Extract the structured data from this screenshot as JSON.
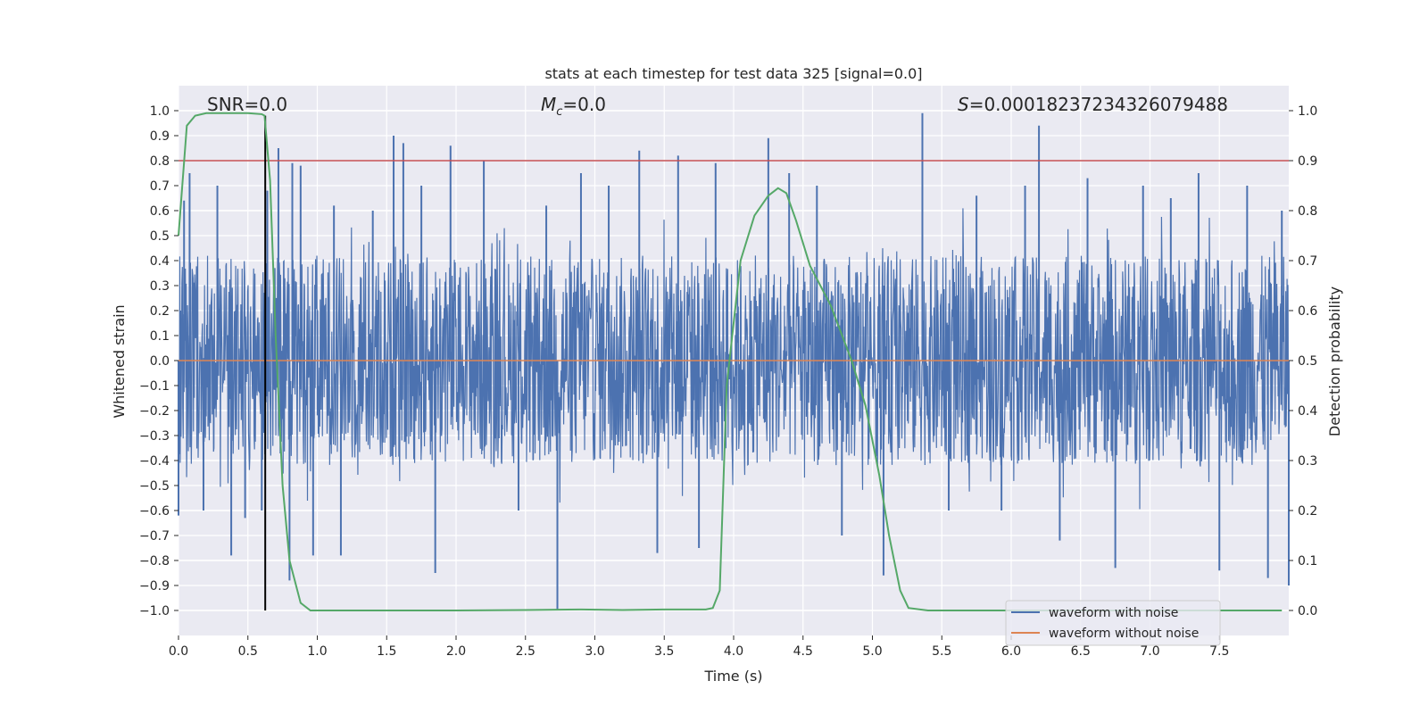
{
  "chart_data": {
    "type": "line",
    "title": "stats at each timestep for test data 325 [signal=0.0]",
    "xlabel": "Time (s)",
    "ylabel_left": "Whitened strain",
    "ylabel_right": "Detection probability",
    "xlim": [
      0.0,
      8.0
    ],
    "ylim_left": [
      -1.1,
      1.1
    ],
    "ylim_right": [
      -0.05,
      1.05
    ],
    "x_ticks": [
      "0.0",
      "0.5",
      "1.0",
      "1.5",
      "2.0",
      "2.5",
      "3.0",
      "3.5",
      "4.0",
      "4.5",
      "5.0",
      "5.5",
      "6.0",
      "6.5",
      "7.0",
      "7.5"
    ],
    "y_ticks_left": [
      "1.0",
      "0.9",
      "0.8",
      "0.7",
      "0.6",
      "0.5",
      "0.4",
      "0.3",
      "0.2",
      "0.1",
      "0.0",
      "−0.1",
      "−0.2",
      "−0.3",
      "−0.4",
      "−0.5",
      "−0.6",
      "−0.7",
      "−0.8",
      "−0.9",
      "−1.0"
    ],
    "y_ticks_right": [
      "1.0",
      "0.9",
      "0.8",
      "0.7",
      "0.6",
      "0.5",
      "0.4",
      "0.3",
      "0.2",
      "0.1",
      "0.0"
    ],
    "annotations": {
      "snr": "SNR=0.0",
      "mc_symbol": "M",
      "mc_sub": "c",
      "mc_value": "=0.0",
      "s_symbol": "S",
      "s_value": "=0.00018237234326079488"
    },
    "threshold_line": {
      "axis": "right",
      "y": 0.9,
      "color": "#c44e52"
    },
    "marker_line": {
      "x": 0.625,
      "y_from": -1.0,
      "y_to": 0.98,
      "color": "#000000"
    },
    "noise_envelope": {
      "typical_abs": 0.42,
      "spike_abs_max": 0.98,
      "color": "#4c72b0"
    },
    "series": [
      {
        "name": "waveform with noise",
        "color": "#4c72b0",
        "axis": "left",
        "spikes": [
          {
            "x": 0.0,
            "y": -0.62
          },
          {
            "x": 0.04,
            "y": 0.64
          },
          {
            "x": 0.08,
            "y": 0.75
          },
          {
            "x": 0.18,
            "y": -0.6
          },
          {
            "x": 0.28,
            "y": 0.7
          },
          {
            "x": 0.38,
            "y": -0.78
          },
          {
            "x": 0.48,
            "y": -0.63
          },
          {
            "x": 0.6,
            "y": -0.6
          },
          {
            "x": 0.64,
            "y": 0.68
          },
          {
            "x": 0.72,
            "y": 0.85
          },
          {
            "x": 0.8,
            "y": -0.88
          },
          {
            "x": 0.82,
            "y": 0.79
          },
          {
            "x": 0.88,
            "y": 0.78
          },
          {
            "x": 0.97,
            "y": -0.78
          },
          {
            "x": 1.12,
            "y": 0.62
          },
          {
            "x": 1.17,
            "y": -0.78
          },
          {
            "x": 1.4,
            "y": 0.6
          },
          {
            "x": 1.55,
            "y": 0.9
          },
          {
            "x": 1.62,
            "y": 0.87
          },
          {
            "x": 1.75,
            "y": 0.7
          },
          {
            "x": 1.85,
            "y": -0.85
          },
          {
            "x": 1.96,
            "y": 0.86
          },
          {
            "x": 2.2,
            "y": 0.8
          },
          {
            "x": 2.45,
            "y": -0.6
          },
          {
            "x": 2.65,
            "y": 0.62
          },
          {
            "x": 2.73,
            "y": -1.0
          },
          {
            "x": 2.9,
            "y": 0.75
          },
          {
            "x": 3.1,
            "y": 0.7
          },
          {
            "x": 3.32,
            "y": 0.84
          },
          {
            "x": 3.45,
            "y": -0.77
          },
          {
            "x": 3.6,
            "y": 0.82
          },
          {
            "x": 3.75,
            "y": -0.75
          },
          {
            "x": 3.87,
            "y": 0.79
          },
          {
            "x": 4.25,
            "y": 0.89
          },
          {
            "x": 4.4,
            "y": 0.75
          },
          {
            "x": 4.6,
            "y": 0.7
          },
          {
            "x": 4.78,
            "y": -0.7
          },
          {
            "x": 5.08,
            "y": -0.86
          },
          {
            "x": 5.36,
            "y": 0.99
          },
          {
            "x": 5.55,
            "y": -0.6
          },
          {
            "x": 5.75,
            "y": 0.66
          },
          {
            "x": 5.93,
            "y": -0.6
          },
          {
            "x": 6.1,
            "y": 0.7
          },
          {
            "x": 6.2,
            "y": 0.94
          },
          {
            "x": 6.35,
            "y": -0.72
          },
          {
            "x": 6.55,
            "y": 0.73
          },
          {
            "x": 6.75,
            "y": -0.83
          },
          {
            "x": 6.95,
            "y": 0.7
          },
          {
            "x": 7.15,
            "y": 0.65
          },
          {
            "x": 7.35,
            "y": 0.75
          },
          {
            "x": 7.5,
            "y": -0.84
          },
          {
            "x": 7.7,
            "y": 0.7
          },
          {
            "x": 7.85,
            "y": -0.87
          },
          {
            "x": 7.95,
            "y": 0.6
          },
          {
            "x": 8.0,
            "y": -0.9
          }
        ]
      },
      {
        "name": "waveform without noise",
        "color": "#dd8452",
        "axis": "left",
        "x": [
          0.0,
          8.0
        ],
        "y": [
          0.0,
          0.0
        ]
      },
      {
        "name": "detection probability",
        "color": "#55a868",
        "axis": "right",
        "x": [
          0.0,
          0.06,
          0.12,
          0.2,
          0.3,
          0.4,
          0.5,
          0.6,
          0.62,
          0.66,
          0.7,
          0.75,
          0.8,
          0.88,
          0.95,
          1.1,
          1.5,
          2.0,
          2.5,
          2.9,
          3.2,
          3.5,
          3.8,
          3.85,
          3.9,
          3.95,
          4.05,
          4.15,
          4.25,
          4.32,
          4.38,
          4.45,
          4.55,
          4.7,
          4.85,
          4.95,
          5.05,
          5.12,
          5.2,
          5.26,
          5.4,
          6.0,
          7.0,
          7.95
        ],
        "y": [
          0.75,
          0.97,
          0.99,
          0.995,
          0.995,
          0.995,
          0.995,
          0.993,
          0.99,
          0.86,
          0.55,
          0.25,
          0.1,
          0.015,
          0.0,
          0.0,
          0.0,
          0.0,
          0.001,
          0.002,
          0.001,
          0.002,
          0.002,
          0.005,
          0.04,
          0.45,
          0.7,
          0.79,
          0.83,
          0.845,
          0.835,
          0.78,
          0.69,
          0.61,
          0.5,
          0.41,
          0.27,
          0.15,
          0.04,
          0.005,
          0.0,
          0.0,
          0.0,
          0.0
        ]
      }
    ],
    "legend": {
      "location": "lower-right",
      "entries": [
        "waveform with noise",
        "waveform without noise"
      ]
    },
    "grid": true
  }
}
